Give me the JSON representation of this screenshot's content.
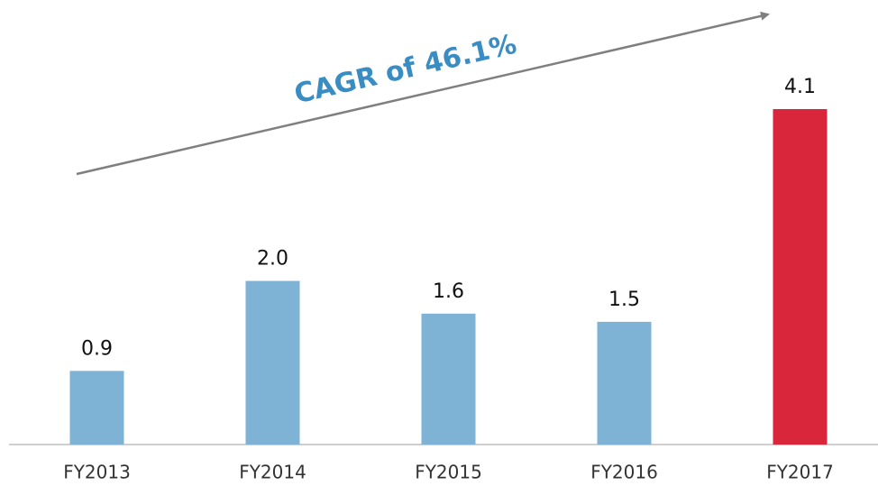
{
  "chart_data": {
    "type": "bar",
    "categories": [
      "FY2013",
      "FY2014",
      "FY2015",
      "FY2016",
      "FY2017"
    ],
    "values": [
      0.9,
      2.0,
      1.6,
      1.5,
      4.1
    ],
    "value_labels": [
      "0.9",
      "2.0",
      "1.6",
      "1.5",
      "4.1"
    ],
    "colors": [
      "#7fb3d5",
      "#7fb3d5",
      "#7fb3d5",
      "#7fb3d5",
      "#d9263a"
    ],
    "annotation": "CAGR of 46.1%"
  }
}
